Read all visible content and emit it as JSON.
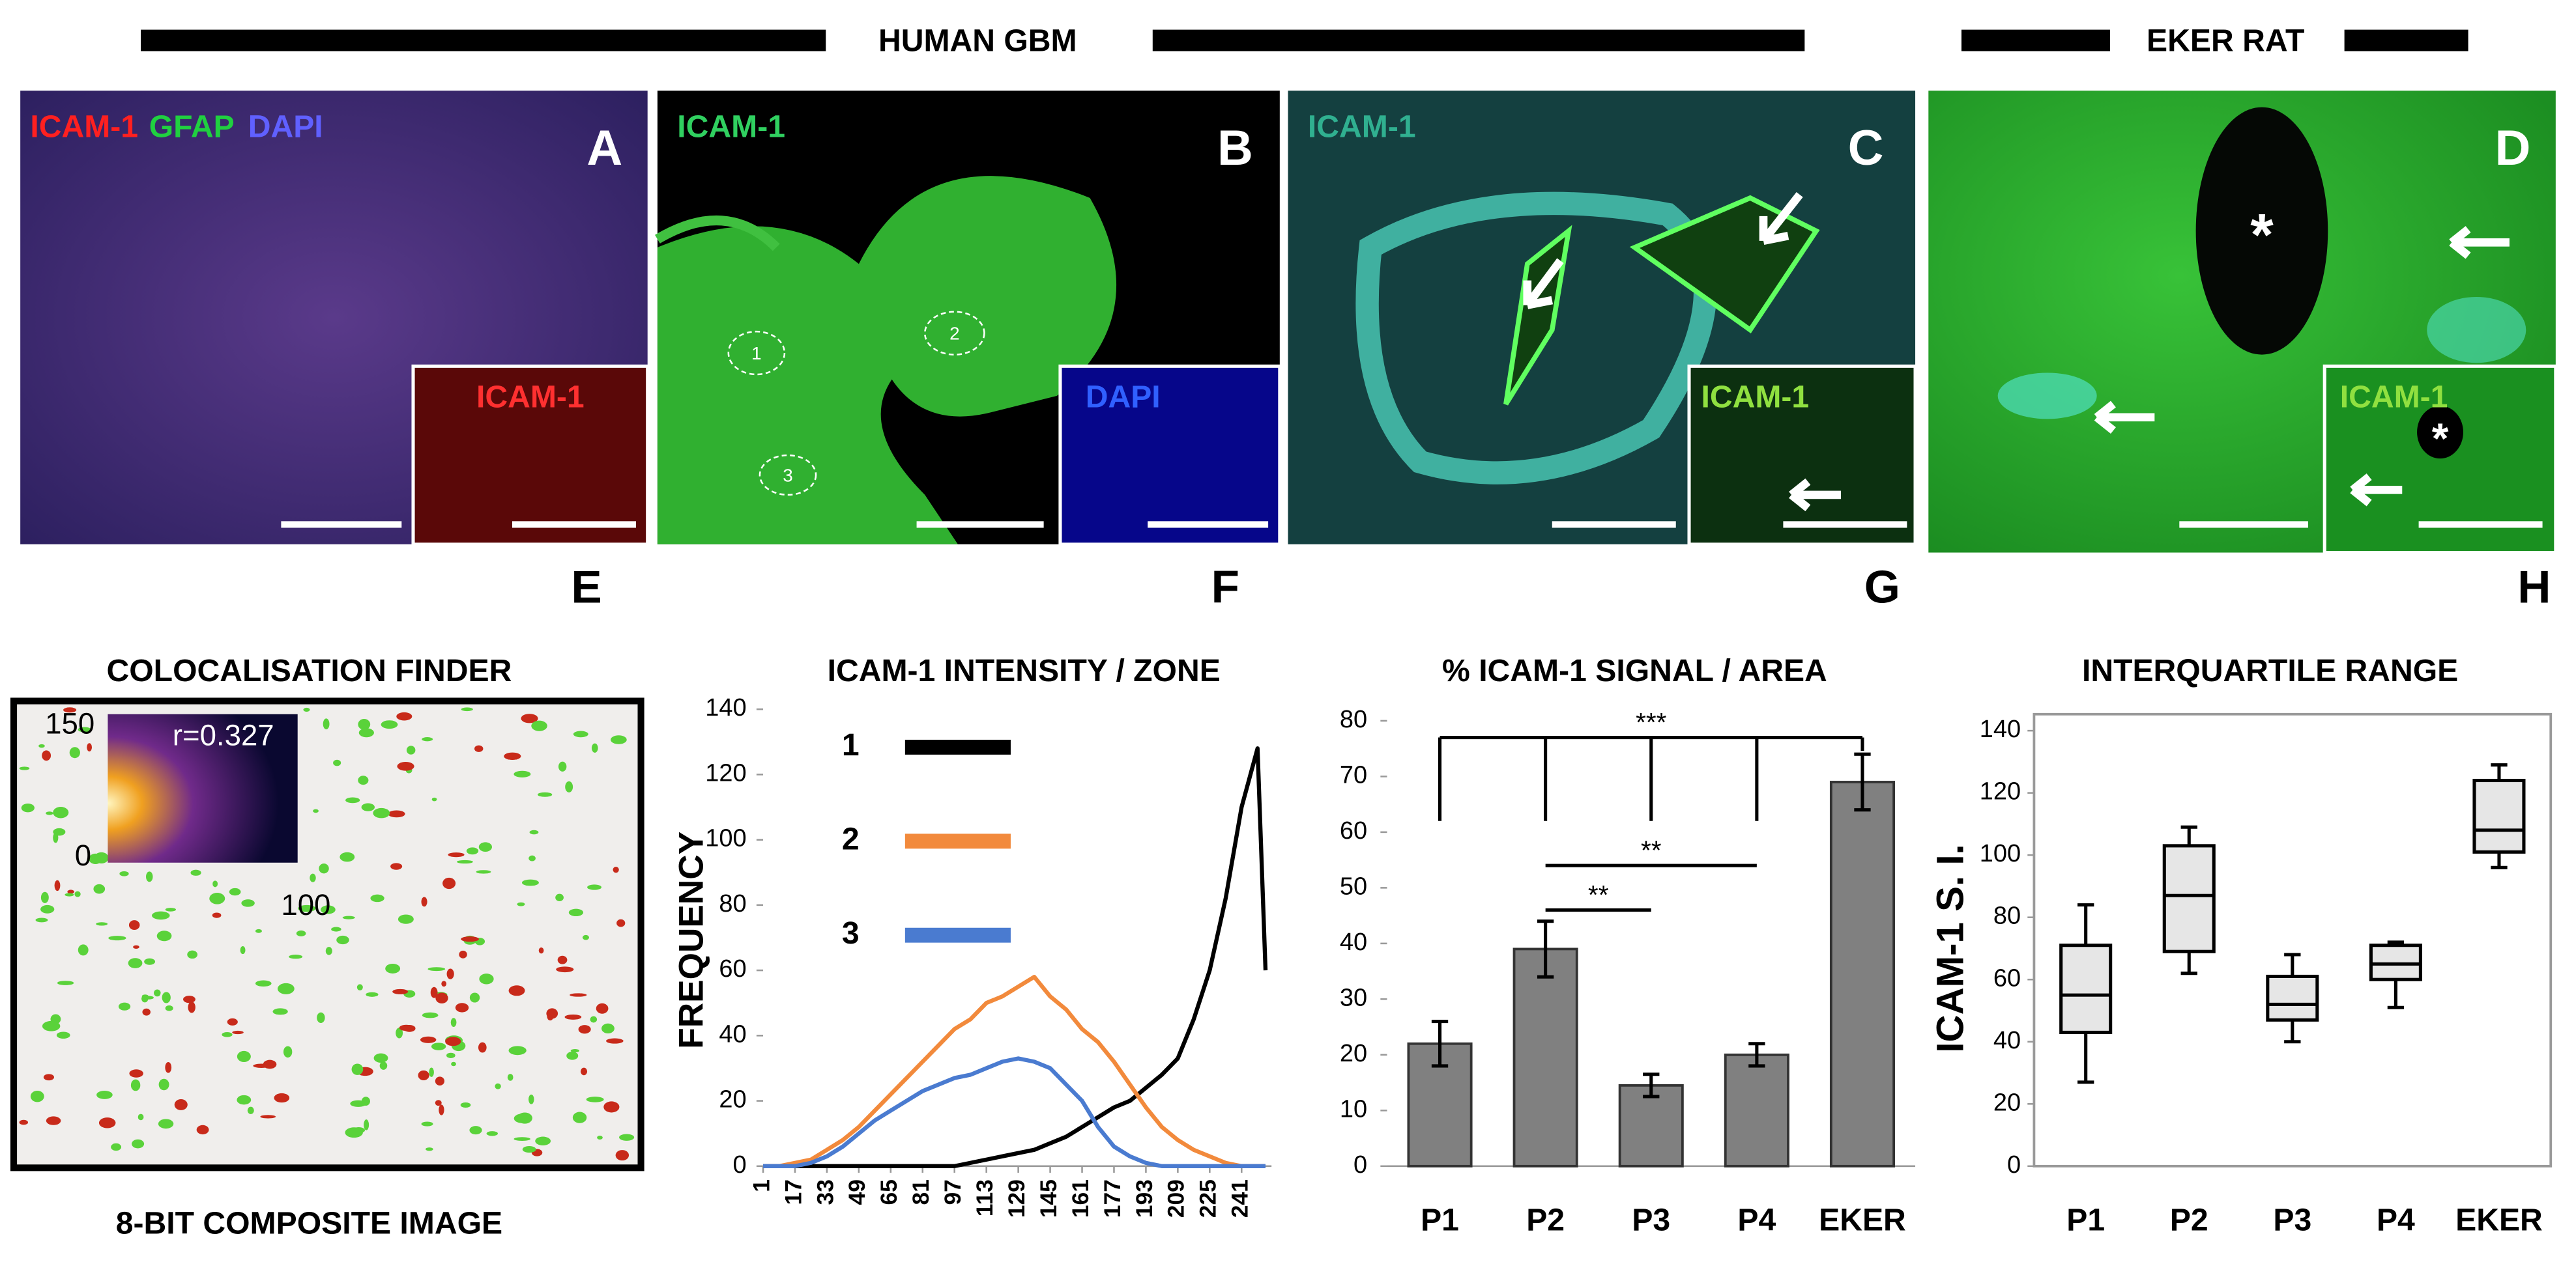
{
  "header": {
    "left": "HUMAN GBM",
    "right": "EKER RAT"
  },
  "panels": {
    "A": {
      "letter": "A",
      "stain": [
        "ICAM-1",
        "GFAP",
        "DAPI"
      ],
      "inset": "ICAM-1"
    },
    "B": {
      "letter": "B",
      "label": "ICAM-1",
      "zones": [
        "1",
        "2",
        "3"
      ],
      "inset": "DAPI"
    },
    "C": {
      "letter": "C",
      "label": "ICAM-1",
      "inset": "ICAM-1"
    },
    "D": {
      "letter": "D",
      "inset": "ICAM-1",
      "marker": "*"
    },
    "E": {
      "letter": "E",
      "title": "COLOCALISATION FINDER",
      "caption": "8-BIT COMPOSITE IMAGE",
      "coefficient": "r=0.327",
      "inset_ticks": [
        "150",
        "0",
        "100"
      ]
    },
    "F": {
      "letter": "F"
    },
    "G": {
      "letter": "G"
    },
    "H": {
      "letter": "H"
    }
  },
  "chart_data": [
    {
      "type": "line",
      "title": "ICAM-1 INTENSITY / ZONE",
      "y_label": "FREQUENCY",
      "x": [
        1,
        9,
        17,
        25,
        33,
        41,
        49,
        57,
        65,
        73,
        81,
        89,
        97,
        105,
        113,
        121,
        129,
        137,
        145,
        153,
        161,
        169,
        177,
        185,
        193,
        201,
        209,
        217,
        225,
        233,
        241,
        249,
        253
      ],
      "series": [
        {
          "name": "1",
          "color": "#000000",
          "values": [
            0,
            0,
            0,
            0,
            0,
            0,
            0,
            0,
            0,
            0,
            0,
            0,
            0,
            1,
            2,
            3,
            4,
            5,
            7,
            9,
            12,
            15,
            18,
            20,
            24,
            28,
            33,
            45,
            60,
            82,
            110,
            128,
            60
          ]
        },
        {
          "name": "2",
          "color": "#f28a3c",
          "values": [
            0,
            0,
            1,
            2,
            5,
            8,
            12,
            17,
            22,
            27,
            32,
            37,
            42,
            45,
            50,
            52,
            55,
            58,
            52,
            48,
            42,
            38,
            32,
            25,
            18,
            12,
            8,
            5,
            3,
            1,
            0,
            0,
            0
          ]
        },
        {
          "name": "3",
          "color": "#4a7bd0",
          "values": [
            0,
            0,
            0,
            1,
            3,
            6,
            10,
            14,
            17,
            20,
            23,
            25,
            27,
            28,
            30,
            32,
            33,
            32,
            30,
            25,
            20,
            12,
            6,
            3,
            1,
            0,
            0,
            0,
            0,
            0,
            0,
            0,
            0
          ]
        }
      ],
      "xlim": [
        1,
        256
      ],
      "xticks": [
        1,
        17,
        33,
        49,
        65,
        81,
        97,
        113,
        129,
        145,
        161,
        177,
        193,
        209,
        225,
        241
      ],
      "ylim": [
        0,
        140
      ],
      "yticks": [
        0,
        20,
        40,
        60,
        80,
        100,
        120,
        140
      ]
    },
    {
      "type": "bar",
      "title": "% ICAM-1 SIGNAL / AREA",
      "categories": [
        "P1",
        "P2",
        "P3",
        "P4",
        "EKER"
      ],
      "values": [
        22,
        39,
        14.5,
        20,
        69
      ],
      "errors": [
        4,
        5,
        2,
        2,
        5
      ],
      "color": "#808080",
      "ylim": [
        0,
        80
      ],
      "yticks": [
        0,
        10,
        20,
        30,
        40,
        50,
        60,
        70,
        80
      ],
      "annotations": [
        {
          "label": "***",
          "from": 0,
          "to": 4,
          "y": 77,
          "drop": 62
        },
        {
          "label": "**",
          "from": 1,
          "to": 3,
          "y": 54
        },
        {
          "label": "**",
          "from": 1,
          "to": 2,
          "y": 46
        }
      ]
    },
    {
      "type": "box",
      "title": "INTERQUARTILE RANGE",
      "y_label": "ICAM-1 S. I.",
      "categories": [
        "P1",
        "P2",
        "P3",
        "P4",
        "EKER"
      ],
      "boxes": [
        {
          "min": 27,
          "q1": 43,
          "median": 55,
          "q3": 71,
          "max": 84
        },
        {
          "min": 62,
          "q1": 69,
          "median": 87,
          "q3": 103,
          "max": 109
        },
        {
          "min": 40,
          "q1": 47,
          "median": 52,
          "q3": 61,
          "max": 68
        },
        {
          "min": 51,
          "q1": 60,
          "median": 65,
          "q3": 71,
          "max": 72
        },
        {
          "min": 96,
          "q1": 101,
          "median": 108,
          "q3": 124,
          "max": 129
        }
      ],
      "color": "#e6e6e6",
      "ylim": [
        0,
        140
      ],
      "yticks": [
        0,
        20,
        40,
        60,
        80,
        100,
        120,
        140
      ]
    }
  ]
}
